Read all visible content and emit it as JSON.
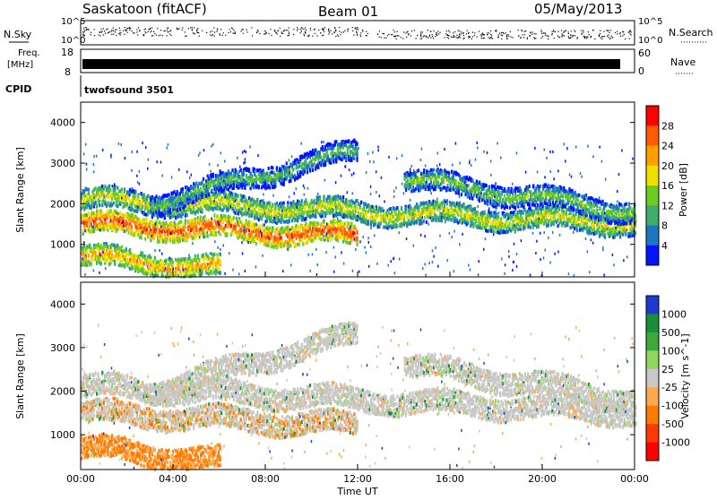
{
  "header": {
    "station": "Saskatoon (fitACF)",
    "beam": "Beam 01",
    "date": "05/May/2013"
  },
  "status_panels": {
    "nsky_label": "N.Sky",
    "nsearch_label": "N.Search",
    "nsky_ticks": [
      "10^5",
      "10^0"
    ],
    "nsearch_ticks": [
      "10^5",
      "10^0"
    ],
    "freq_label_1": "Freq.",
    "freq_label_2": "[MHz]",
    "freq_ticks": [
      "18",
      "8"
    ],
    "nave_ticks": [
      "60",
      "0"
    ],
    "nave_label": "Nave",
    "cpid_label": "CPID",
    "cpid_value": "twofsound 3501"
  },
  "chart_data": [
    {
      "type": "heatmap",
      "title": "",
      "xlabel": "",
      "ylabel": "Slant Range [km]",
      "x_range_hours": [
        0,
        24
      ],
      "ylim": [
        200,
        4500
      ],
      "y_ticks": [
        1000,
        2000,
        3000,
        4000
      ],
      "colorbar": {
        "label": "Power [dB]",
        "ticks": [
          "28",
          "24",
          "20",
          "16",
          "12",
          "8",
          "4"
        ],
        "colors": [
          "#ff0000",
          "#ff5a00",
          "#ffa000",
          "#f0e000",
          "#6ccc22",
          "#3fae6b",
          "#1e77c3",
          "#0014ff"
        ]
      },
      "bands": [
        {
          "name": "low-band",
          "t0": 0.0,
          "t1": 12.0,
          "r0": 1500,
          "r1": 1200,
          "level": 0.9
        },
        {
          "name": "mid-band",
          "t0": 0.0,
          "t1": 24.0,
          "r0": 2100,
          "r1": 1500,
          "level": 0.6
        },
        {
          "name": "upper-arc",
          "t0": 3.0,
          "t1": 12.0,
          "r0": 2000,
          "r1": 3300,
          "level": 0.4
        },
        {
          "name": "bottom-echo",
          "t0": 0.0,
          "t1": 6.0,
          "r0": 700,
          "r1": 400,
          "level": 0.75
        },
        {
          "name": "evening-band",
          "t0": 14.0,
          "t1": 24.0,
          "r0": 2600,
          "r1": 1800,
          "level": 0.45
        }
      ]
    },
    {
      "type": "heatmap",
      "title": "",
      "xlabel": "Time UT",
      "ylabel": "Slant Range [km]",
      "x_range_hours": [
        0,
        24
      ],
      "x_ticks": [
        "00:00",
        "04:00",
        "08:00",
        "12:00",
        "16:00",
        "20:00",
        "00:00"
      ],
      "ylim": [
        200,
        4500
      ],
      "y_ticks": [
        1000,
        2000,
        3000,
        4000
      ],
      "colorbar": {
        "label": "Velocity [m s^-1]",
        "ticks": [
          "1000",
          "500",
          "100",
          "25",
          "-25",
          "-100",
          "-500",
          "-1000"
        ],
        "colors": [
          "#1c3ccf",
          "#1b8e3c",
          "#3fa83a",
          "#8fd660",
          "#c8c8c8",
          "#ffa94d",
          "#ff7b00",
          "#ff3a00",
          "#ff0000"
        ]
      }
    }
  ]
}
